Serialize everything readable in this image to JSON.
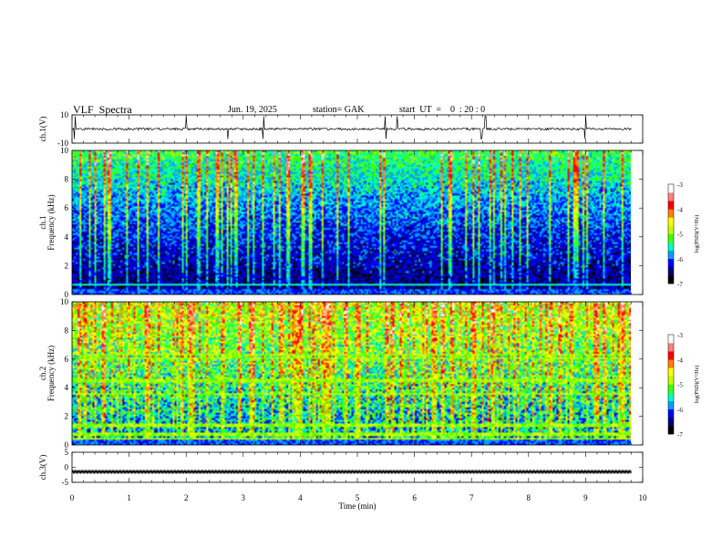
{
  "header": {
    "title": "VLF  Spectra",
    "date": "Jun. 19, 2025",
    "station": "station= GAK",
    "start": "start  UT  =    0  : 20 : 0"
  },
  "chart_data": [
    {
      "type": "line",
      "ylabel": "ch.1(V)",
      "yticks": [
        "10",
        "-10"
      ],
      "ylim": [
        -10,
        10
      ],
      "description_values": {
        "baseline": 0
      },
      "spikes_at_min": [
        0.05,
        2.0,
        2.73,
        3.35,
        5.5,
        5.7,
        7.18,
        7.25,
        9.0
      ]
    },
    {
      "type": "heatmap",
      "ylabel": "ch.1\nFrequency (kHz)",
      "ylim": [
        0,
        10
      ],
      "yticks": [
        "0",
        "2",
        "4",
        "6",
        "8",
        "10"
      ],
      "colorbar": {
        "label": "log(PSD)(V²/Hz)",
        "ticks": [
          "-3",
          "-4",
          "-5",
          "-6",
          "-7"
        ],
        "range": [
          -7,
          -3
        ]
      },
      "colormap": [
        "#000000",
        "#000080",
        "#0000ff",
        "#00a0ff",
        "#00ffc0",
        "#40ff00",
        "#c0ff00",
        "#ffff00",
        "#ff8000",
        "#ff0000",
        "#ff8080",
        "#ffffff"
      ]
    },
    {
      "type": "heatmap",
      "ylabel": "ch.2\nFrequency (kHz)",
      "ylim": [
        0,
        10
      ],
      "yticks": [
        "0",
        "2",
        "4",
        "6",
        "8",
        "10"
      ],
      "colorbar": {
        "label": "log(PSD)(V²/Hz)",
        "ticks": [
          "-3",
          "-4",
          "-5",
          "-6",
          "-7"
        ],
        "range": [
          -7,
          -3
        ]
      }
    },
    {
      "type": "line",
      "ylabel": "ch.3(V)",
      "yticks": [
        "5",
        "0",
        "-5"
      ],
      "ylim": [
        -5,
        5
      ],
      "description_values": {
        "baseline": -1.5
      }
    }
  ],
  "xaxis": {
    "label": "Time  (min)",
    "ticks": [
      "0",
      "1",
      "2",
      "3",
      "4",
      "5",
      "6",
      "7",
      "8",
      "9",
      "10"
    ],
    "xlim": [
      0,
      10
    ],
    "data_end": 9.8
  }
}
